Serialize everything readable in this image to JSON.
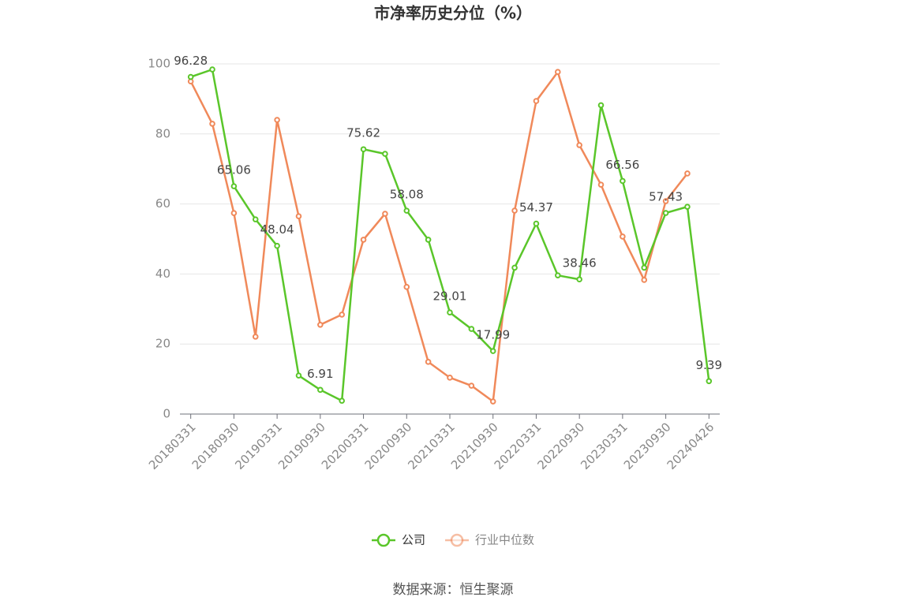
{
  "chart_data": {
    "type": "line",
    "title": "市净率历史分位（%）",
    "source": "数据来源：恒生聚源",
    "categories": [
      "20180331",
      null,
      "20180930",
      null,
      "20190331",
      null,
      "20190930",
      null,
      "20200331",
      null,
      "20200930",
      null,
      "20210331",
      null,
      "20210930",
      null,
      "20220331",
      null,
      "20220930",
      null,
      "20230331",
      null,
      "20230930",
      null,
      "20240426"
    ],
    "series": [
      {
        "name": "公司",
        "color": "#5ac62a",
        "values": [
          96.28,
          98.4,
          65.06,
          55.6,
          48.04,
          11.0,
          6.91,
          3.8,
          75.62,
          74.3,
          58.08,
          49.8,
          29.01,
          24.3,
          17.99,
          41.8,
          54.37,
          39.6,
          38.46,
          88.2,
          66.56,
          41.8,
          57.43,
          59.2,
          9.39
        ],
        "value_labels": [
          "96.28",
          null,
          "65.06",
          null,
          "48.04",
          null,
          "6.91",
          null,
          "75.62",
          null,
          "58.08",
          null,
          "29.01",
          null,
          "17.99",
          null,
          "54.37",
          null,
          "38.46",
          null,
          "66.56",
          null,
          "57.43",
          null,
          "9.39"
        ]
      },
      {
        "name": "行业中位数",
        "color": "#f0895a",
        "values": [
          95.0,
          82.9,
          57.4,
          22.1,
          84.0,
          56.5,
          25.5,
          28.4,
          49.8,
          57.2,
          36.3,
          14.9,
          10.4,
          8.1,
          3.6,
          58.1,
          89.4,
          97.7,
          76.8,
          65.5,
          50.7,
          38.3,
          60.8,
          68.7,
          null
        ]
      }
    ],
    "ylim": [
      0,
      100
    ],
    "yticks": [
      0,
      20,
      40,
      60,
      80,
      100
    ],
    "grid": true,
    "legend": "bottom"
  }
}
